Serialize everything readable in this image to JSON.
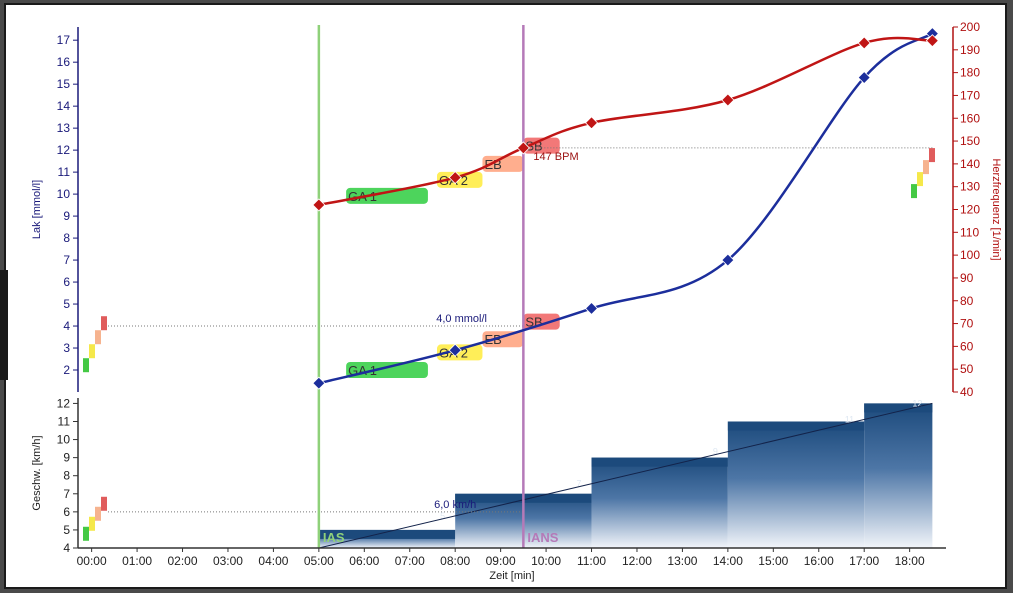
{
  "colors": {
    "lactate": "#1c2e9c",
    "heart_rate": "#c01515",
    "ias_line": "#8fd17a",
    "ians_line": "#b57ab8",
    "speed_bar": "#1c4a7c",
    "axis_left": "#1a1a7a",
    "axis_right": "#b01010"
  },
  "icons": {
    "lactate_marker": "diamond-icon",
    "hr_marker": "diamond-icon"
  },
  "chart_data": [
    {
      "id": "lactate-hr",
      "type": "line",
      "x_unit": "min",
      "xlim": [
        -0.3,
        18.8
      ],
      "ylabel": "Lak [mmol/l]",
      "ylim": [
        1,
        17.6
      ],
      "yticks": [
        2,
        3,
        4,
        5,
        6,
        7,
        8,
        9,
        10,
        11,
        12,
        13,
        14,
        15,
        16,
        17
      ],
      "y2label": "Herzfrequenz [1/min]",
      "y2lim": [
        40,
        200
      ],
      "y2ticks": [
        40,
        50,
        60,
        70,
        80,
        90,
        100,
        110,
        120,
        130,
        140,
        150,
        160,
        170,
        180,
        190,
        200
      ],
      "grid": false,
      "series": [
        {
          "key": "lactate",
          "axis": "left",
          "x": [
            5,
            8,
            11,
            14,
            17,
            18.5
          ],
          "y": [
            1.4,
            2.9,
            4.8,
            7.0,
            15.3,
            17.3
          ]
        },
        {
          "key": "heart_rate",
          "axis": "right",
          "x": [
            5,
            8,
            9.5,
            11,
            14,
            17,
            18.5
          ],
          "y": [
            122,
            134,
            147,
            158,
            168,
            193,
            194
          ]
        }
      ],
      "thresholds": [
        {
          "axis": "left",
          "value": 4.0,
          "label": "4,0 mmol/l"
        },
        {
          "axis": "right",
          "value": 147,
          "label": "147 BPM"
        }
      ],
      "zones": [
        {
          "name": "GA 1",
          "axis": "left",
          "x": [
            5.6,
            7.4
          ],
          "y": 2.0,
          "color": "#2ecc40"
        },
        {
          "name": "GA 2",
          "axis": "left",
          "x": [
            7.6,
            8.6
          ],
          "y": 2.8,
          "color": "#ffeb3b"
        },
        {
          "name": "EB",
          "axis": "left",
          "x": [
            8.6,
            9.5
          ],
          "y": 3.4,
          "color": "#ffa07a"
        },
        {
          "name": "SB",
          "axis": "left",
          "x": [
            9.5,
            10.3
          ],
          "y": 4.2,
          "color": "#f06060"
        },
        {
          "name": "GA 1",
          "axis": "right",
          "x": [
            5.6,
            7.4
          ],
          "y": 126,
          "color": "#2ecc40"
        },
        {
          "name": "GA 2",
          "axis": "right",
          "x": [
            7.6,
            8.6
          ],
          "y": 133,
          "color": "#ffeb3b"
        },
        {
          "name": "EB",
          "axis": "right",
          "x": [
            8.6,
            9.5
          ],
          "y": 140,
          "color": "#ffa07a"
        },
        {
          "name": "SB",
          "axis": "right",
          "x": [
            9.5,
            10.3
          ],
          "y": 148,
          "color": "#f06060"
        }
      ]
    },
    {
      "id": "speed",
      "type": "bar",
      "xlabel": "Zeit [min]",
      "xtick_labels": [
        "00:00",
        "01:00",
        "02:00",
        "03:00",
        "04:00",
        "05:00",
        "06:00",
        "07:00",
        "08:00",
        "09:00",
        "10:00",
        "11:00",
        "12:00",
        "13:00",
        "14:00",
        "15:00",
        "16:00",
        "17:00",
        "18:00"
      ],
      "xticks": [
        0,
        1,
        2,
        3,
        4,
        5,
        6,
        7,
        8,
        9,
        10,
        11,
        12,
        13,
        14,
        15,
        16,
        17,
        18
      ],
      "ylabel": "Geschw. [km/h]",
      "ylim": [
        4,
        12.3
      ],
      "yticks": [
        4,
        5,
        6,
        7,
        8,
        9,
        10,
        11,
        12
      ],
      "steps": [
        {
          "x": [
            5,
            8
          ],
          "value": 5,
          "label": "5"
        },
        {
          "x": [
            8,
            11
          ],
          "value": 7,
          "label": "7"
        },
        {
          "x": [
            11,
            14
          ],
          "value": 9,
          "label": "9"
        },
        {
          "x": [
            14,
            17
          ],
          "value": 11,
          "label": "11"
        },
        {
          "x": [
            17,
            18.5
          ],
          "value": 12,
          "label": "12"
        }
      ],
      "ramp": {
        "x": [
          5,
          18.5
        ],
        "y": [
          4,
          12
        ]
      },
      "threshold": {
        "value": 6.0,
        "label": "6,0 km/h"
      }
    }
  ],
  "markers": [
    {
      "label": "IAS",
      "x": 5
    },
    {
      "label": "IANS",
      "x": 9.5
    }
  ]
}
